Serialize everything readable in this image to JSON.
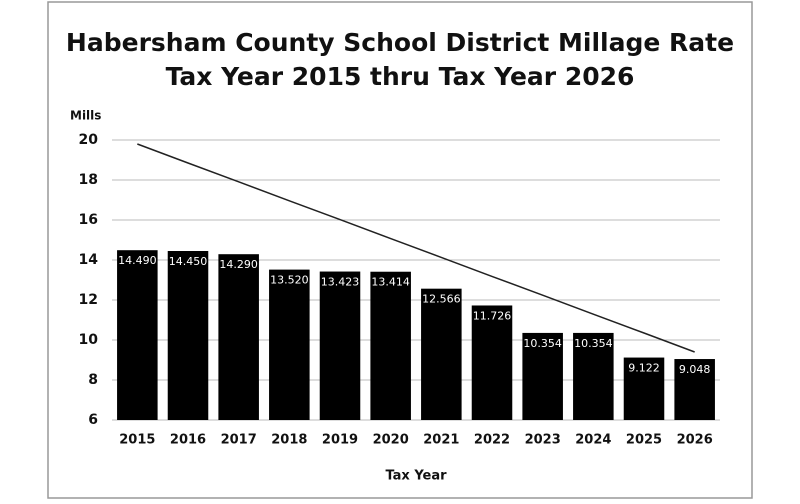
{
  "chart_data": {
    "type": "bar",
    "title": "Habersham County School District Millage Rate",
    "subtitle": "Tax Year 2015 thru Tax Year 2026",
    "y_label": "Mills",
    "x_label": "Tax Year",
    "categories": [
      "2015",
      "2016",
      "2017",
      "2018",
      "2019",
      "2020",
      "2021",
      "2022",
      "2023",
      "2024",
      "2025",
      "2026"
    ],
    "series": [
      {
        "type": "bar",
        "color": "#000000",
        "values": [
          14.49,
          14.45,
          14.29,
          13.52,
          13.423,
          13.414,
          12.566,
          11.726,
          10.354,
          10.354,
          9.122,
          9.048
        ],
        "value_labels": [
          "14.490",
          "14.450",
          "14.290",
          "13.520",
          "13.423",
          "13.414",
          "12.566",
          "11.726",
          "10.354",
          "10.354",
          "9.122",
          "9.048"
        ]
      },
      {
        "type": "line",
        "color": "#222222",
        "values": [
          19.8,
          18.85,
          17.91,
          16.96,
          16.02,
          15.07,
          14.13,
          13.18,
          12.24,
          11.29,
          10.35,
          9.4
        ]
      }
    ],
    "ylim": [
      6,
      20
    ],
    "yticks": [
      6,
      8,
      10,
      12,
      14,
      16,
      18,
      20
    ],
    "grid": true
  }
}
